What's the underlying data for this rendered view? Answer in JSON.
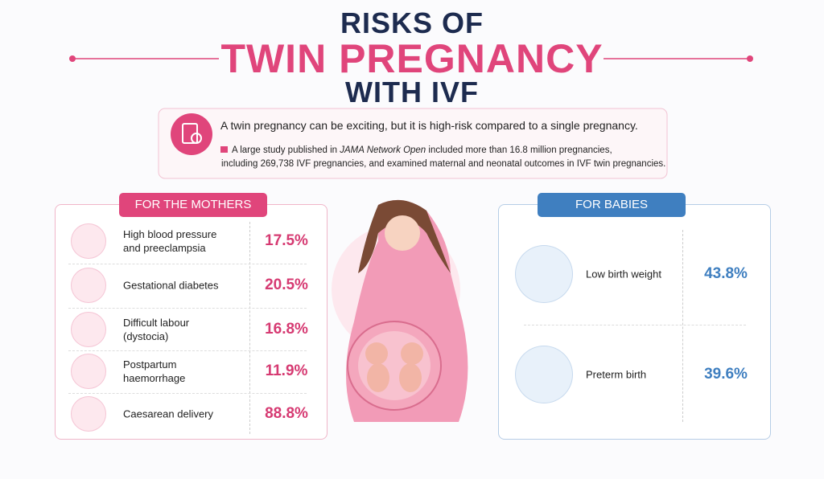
{
  "header": {
    "line1": "RISKS OF",
    "line2": "TWIN PREGNANCY",
    "line3": "WITH IVF"
  },
  "intro": {
    "lead": "A twin pregnancy can be exciting, but it is high-risk compared to a single pregnancy.",
    "study_before": "A large study published in ",
    "study_journal": "JAMA Network Open",
    "study_after": " included more than 16.8 million pregnancies,",
    "study_line2": "including 269,738 IVF pregnancies, and examined maternal and neonatal outcomes in IVF twin pregnancies."
  },
  "mothers": {
    "title": "FOR THE MOTHERS",
    "rows": [
      {
        "label": [
          "High blood pressure",
          "and preeclampsia"
        ],
        "value": "17.5%"
      },
      {
        "label": [
          "Gestational diabetes"
        ],
        "value": "20.5%"
      },
      {
        "label": [
          "Difficult labour",
          "(dystocia)"
        ],
        "value": "16.8%"
      },
      {
        "label": [
          "Postpartum",
          "haemorrhage"
        ],
        "value": "11.9%"
      },
      {
        "label": [
          "Caesarean delivery"
        ],
        "value": "88.8%"
      }
    ]
  },
  "babies": {
    "title": "FOR BABIES",
    "rows": [
      {
        "label": [
          "Low birth weight"
        ],
        "value": "43.8%"
      },
      {
        "label": [
          "Preterm birth"
        ],
        "value": "39.6%"
      }
    ]
  }
}
